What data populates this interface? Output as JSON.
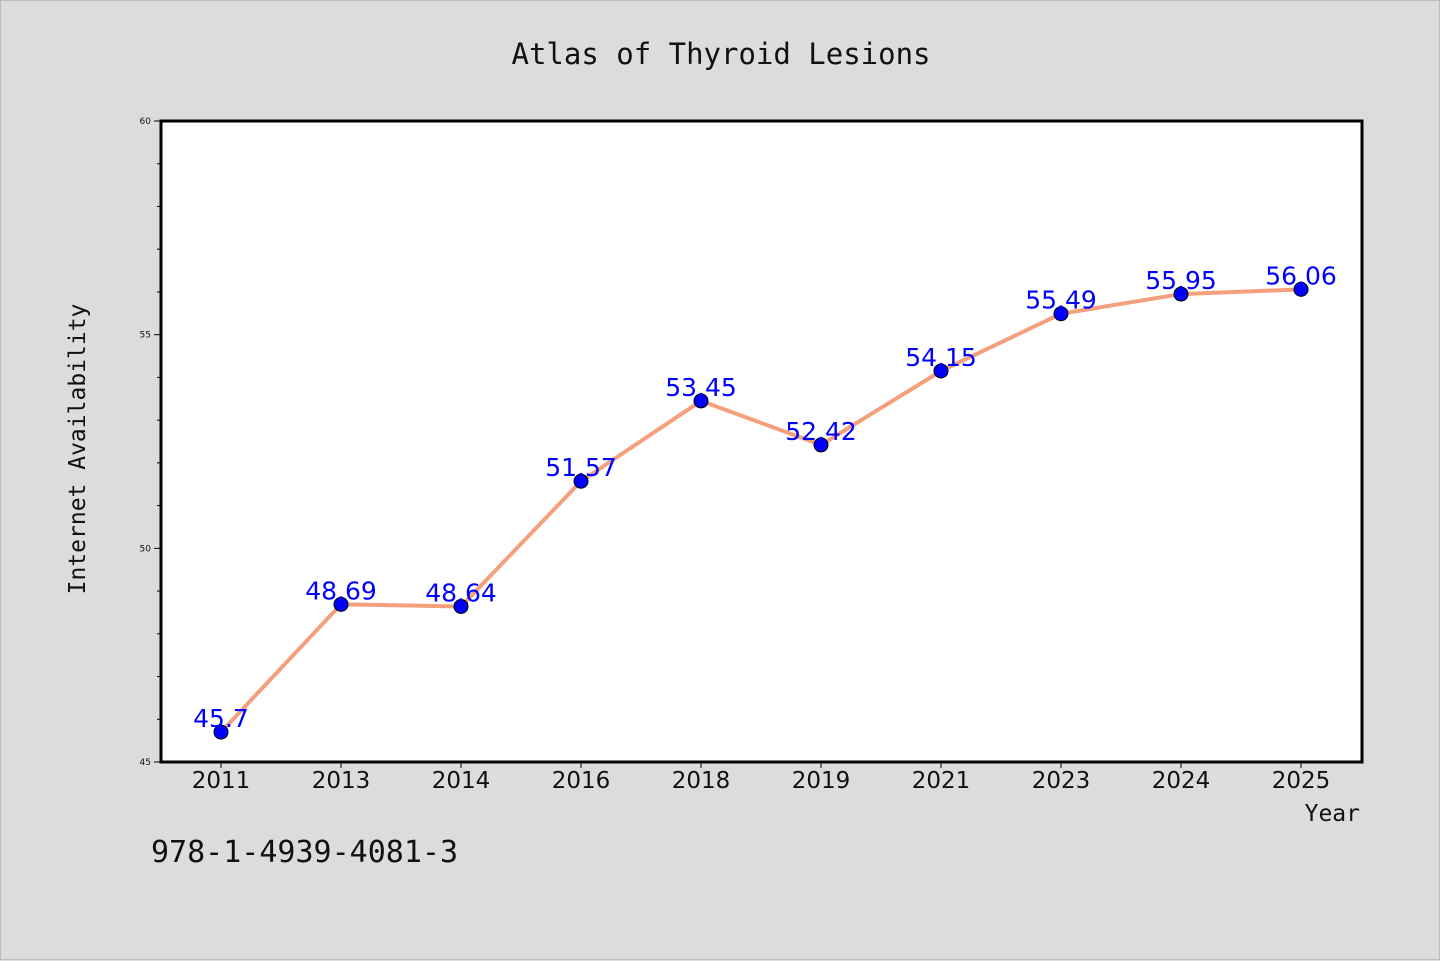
{
  "figure": {
    "isbn": "978-1-4939-4081-3"
  },
  "chart_data": {
    "type": "line",
    "title": "Atlas of Thyroid Lesions",
    "xlabel": "Year",
    "ylabel": "Internet Availability",
    "categories": [
      "2011",
      "2013",
      "2014",
      "2016",
      "2018",
      "2019",
      "2021",
      "2023",
      "2024",
      "2025"
    ],
    "values": [
      45.7,
      48.69,
      48.64,
      51.57,
      53.45,
      52.42,
      54.15,
      55.49,
      55.95,
      56.06
    ],
    "data_labels": [
      "45.7",
      "48.69",
      "48.64",
      "51.57",
      "53.45",
      "52.42",
      "54.15",
      "55.49",
      "55.95",
      "56.06"
    ],
    "ylim": [
      45,
      60
    ],
    "y_major_ticks": [
      "45",
      "50",
      "55",
      "60"
    ],
    "grid": false,
    "colors": {
      "line": "#f4a07c",
      "marker": "#0000ff",
      "label": "#0000ff",
      "plot_background": "#ffffff",
      "figure_background": "#dcdcdc"
    }
  }
}
